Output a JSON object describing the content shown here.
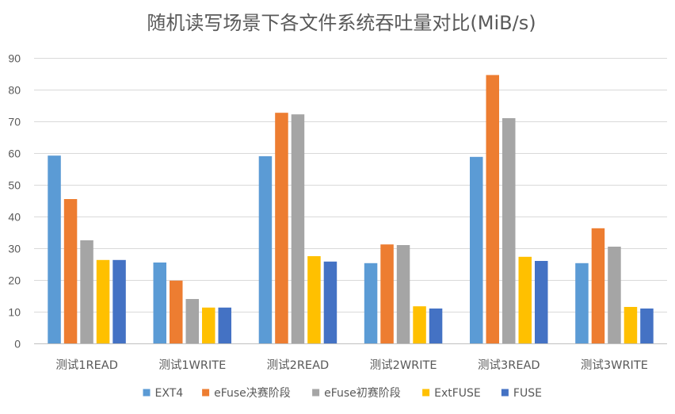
{
  "chart_data": {
    "type": "bar",
    "title": "随机读写场景下各文件系统吞吐量对比(MiB/s)",
    "xlabel": "",
    "ylabel": "",
    "ylim": [
      0,
      90
    ],
    "yticks": [
      0,
      10,
      20,
      30,
      40,
      50,
      60,
      70,
      80,
      90
    ],
    "grid": true,
    "legend_position": "bottom",
    "categories": [
      "测试1READ",
      "测试1WRITE",
      "测试2READ",
      "测试2WRITE",
      "测试3READ",
      "测试3WRITE"
    ],
    "series": [
      {
        "name": "EXT4",
        "color": "#5b9bd5",
        "values": [
          59.2,
          25.5,
          59.0,
          25.3,
          58.8,
          25.3
        ]
      },
      {
        "name": "eFuse决赛阶段",
        "color": "#ed7d31",
        "values": [
          45.5,
          19.8,
          72.7,
          31.2,
          84.6,
          36.3
        ]
      },
      {
        "name": "eFuse初赛阶段",
        "color": "#a5a5a5",
        "values": [
          32.5,
          14.0,
          72.2,
          31.0,
          71.0,
          30.5
        ]
      },
      {
        "name": "ExtFUSE",
        "color": "#ffc000",
        "values": [
          26.3,
          11.3,
          27.5,
          11.7,
          27.3,
          11.5
        ]
      },
      {
        "name": "FUSE",
        "color": "#4472c4",
        "values": [
          26.3,
          11.3,
          25.8,
          11.0,
          26.0,
          11.0
        ]
      }
    ]
  }
}
